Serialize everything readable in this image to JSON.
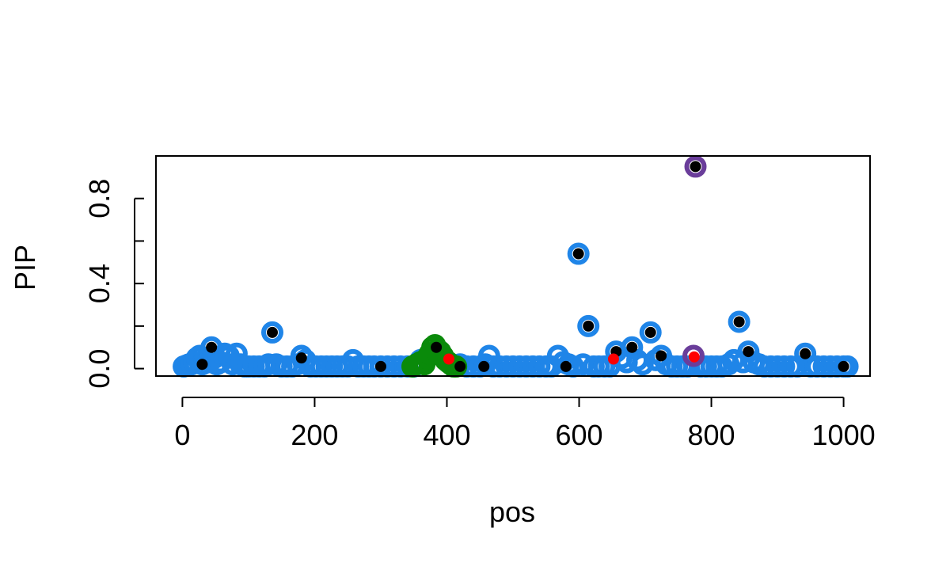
{
  "chart_data": {
    "type": "scatter",
    "title": "",
    "xlabel": "pos",
    "ylabel": "PIP",
    "xlim": [
      -40,
      1040
    ],
    "ylim": [
      -0.035,
      1.0
    ],
    "x_ticks": [
      0,
      200,
      400,
      600,
      800,
      1000
    ],
    "x_tick_labels": [
      "0",
      "200",
      "400",
      "600",
      "800",
      "1000"
    ],
    "y_ticks": [
      0.0,
      0.2,
      0.4,
      0.6,
      0.8
    ],
    "y_tick_labels": [
      "0.0",
      "",
      "0.4",
      "",
      "0.8"
    ],
    "grid": false,
    "legend": "none",
    "colors": {
      "credible_set_1": "#1f85e8",
      "credible_set_2": "#6a3d9a",
      "credible_set_3": "#0a8a0a",
      "point_fill": "#000000",
      "causal": "#ff0000"
    },
    "series": [
      {
        "role": "ring",
        "color": "#1f85e8",
        "points": [
          [
            2,
            0.01
          ],
          [
            6,
            0.015
          ],
          [
            10,
            0.02
          ],
          [
            14,
            0.02
          ],
          [
            18,
            0.03
          ],
          [
            22,
            0.05
          ],
          [
            26,
            0.06
          ],
          [
            30,
            0.02
          ],
          [
            34,
            0.04
          ],
          [
            38,
            0.03
          ],
          [
            44,
            0.1
          ],
          [
            48,
            0.05
          ],
          [
            52,
            0.02
          ],
          [
            58,
            0.03
          ],
          [
            64,
            0.07
          ],
          [
            70,
            0.06
          ],
          [
            76,
            0.02
          ],
          [
            82,
            0.07
          ],
          [
            88,
            0.02
          ],
          [
            94,
            0.01
          ],
          [
            100,
            0.01
          ],
          [
            108,
            0.01
          ],
          [
            116,
            0.01
          ],
          [
            124,
            0.01
          ],
          [
            130,
            0.02
          ],
          [
            136,
            0.17
          ],
          [
            142,
            0.02
          ],
          [
            150,
            0.01
          ],
          [
            158,
            0.01
          ],
          [
            166,
            0.01
          ],
          [
            174,
            0.02
          ],
          [
            180,
            0.06
          ],
          [
            186,
            0.04
          ],
          [
            194,
            0.01
          ],
          [
            202,
            0.01
          ],
          [
            210,
            0.01
          ],
          [
            218,
            0.01
          ],
          [
            226,
            0.01
          ],
          [
            234,
            0.01
          ],
          [
            242,
            0.01
          ],
          [
            250,
            0.01
          ],
          [
            258,
            0.04
          ],
          [
            266,
            0.01
          ],
          [
            274,
            0.01
          ],
          [
            282,
            0.01
          ],
          [
            290,
            0.01
          ],
          [
            300,
            0.01
          ],
          [
            310,
            0.01
          ],
          [
            320,
            0.01
          ],
          [
            330,
            0.01
          ],
          [
            340,
            0.01
          ],
          [
            350,
            0.01
          ],
          [
            360,
            0.04
          ],
          [
            420,
            0.02
          ],
          [
            430,
            0.01
          ],
          [
            440,
            0.01
          ],
          [
            450,
            0.01
          ],
          [
            458,
            0.02
          ],
          [
            464,
            0.06
          ],
          [
            470,
            0.01
          ],
          [
            480,
            0.01
          ],
          [
            490,
            0.01
          ],
          [
            500,
            0.01
          ],
          [
            510,
            0.01
          ],
          [
            520,
            0.01
          ],
          [
            530,
            0.01
          ],
          [
            540,
            0.01
          ],
          [
            550,
            0.01
          ],
          [
            558,
            0.01
          ],
          [
            568,
            0.06
          ],
          [
            576,
            0.03
          ],
          [
            584,
            0.02
          ],
          [
            591,
            0.01
          ],
          [
            599,
            0.54
          ],
          [
            606,
            0.02
          ],
          [
            614,
            0.2
          ],
          [
            622,
            0.01
          ],
          [
            630,
            0.01
          ],
          [
            638,
            0.01
          ],
          [
            646,
            0.01
          ],
          [
            656,
            0.08
          ],
          [
            664,
            0.05
          ],
          [
            672,
            0.03
          ],
          [
            680,
            0.1
          ],
          [
            688,
            0.04
          ],
          [
            696,
            0.02
          ],
          [
            708,
            0.17
          ],
          [
            716,
            0.04
          ],
          [
            724,
            0.06
          ],
          [
            732,
            0.02
          ],
          [
            740,
            0.01
          ],
          [
            748,
            0.01
          ],
          [
            756,
            0.01
          ],
          [
            764,
            0.01
          ],
          [
            784,
            0.01
          ],
          [
            792,
            0.01
          ],
          [
            800,
            0.01
          ],
          [
            808,
            0.01
          ],
          [
            816,
            0.01
          ],
          [
            826,
            0.02
          ],
          [
            834,
            0.04
          ],
          [
            842,
            0.22
          ],
          [
            848,
            0.03
          ],
          [
            856,
            0.08
          ],
          [
            864,
            0.03
          ],
          [
            872,
            0.02
          ],
          [
            880,
            0.01
          ],
          [
            890,
            0.01
          ],
          [
            900,
            0.01
          ],
          [
            910,
            0.01
          ],
          [
            920,
            0.01
          ],
          [
            930,
            0.01
          ],
          [
            942,
            0.07
          ],
          [
            950,
            0.01
          ],
          [
            960,
            0.01
          ],
          [
            970,
            0.01
          ],
          [
            980,
            0.01
          ],
          [
            990,
            0.01
          ],
          [
            1000,
            0.01
          ],
          [
            1006,
            0.01
          ]
        ]
      },
      {
        "role": "ring",
        "color": "#0a8a0a",
        "points": [
          [
            348,
            0.01
          ],
          [
            354,
            0.02
          ],
          [
            360,
            0.03
          ],
          [
            366,
            0.02
          ],
          [
            370,
            0.05
          ],
          [
            374,
            0.07
          ],
          [
            378,
            0.1
          ],
          [
            382,
            0.11
          ],
          [
            386,
            0.09
          ],
          [
            390,
            0.08
          ],
          [
            394,
            0.06
          ],
          [
            398,
            0.04
          ],
          [
            402,
            0.03
          ],
          [
            406,
            0.02
          ],
          [
            410,
            0.01
          ],
          [
            414,
            0.01
          ]
        ]
      },
      {
        "role": "ring",
        "color": "#6a3d9a",
        "points": [
          [
            776,
            0.95
          ],
          [
            773,
            0.06
          ]
        ]
      },
      {
        "role": "dot",
        "color": "#000000",
        "points": [
          [
            44,
            0.1
          ],
          [
            136,
            0.17
          ],
          [
            180,
            0.05
          ],
          [
            300,
            0.01
          ],
          [
            384,
            0.1
          ],
          [
            599,
            0.54
          ],
          [
            614,
            0.2
          ],
          [
            656,
            0.08
          ],
          [
            680,
            0.1
          ],
          [
            708,
            0.17
          ],
          [
            724,
            0.06
          ],
          [
            776,
            0.95
          ],
          [
            842,
            0.22
          ],
          [
            856,
            0.08
          ],
          [
            942,
            0.07
          ],
          [
            1000,
            0.01
          ],
          [
            30,
            0.02
          ],
          [
            420,
            0.01
          ],
          [
            456,
            0.01
          ],
          [
            580,
            0.01
          ]
        ]
      },
      {
        "role": "dot",
        "color": "#ff0000",
        "points": [
          [
            403,
            0.045
          ],
          [
            652,
            0.045
          ],
          [
            774,
            0.055
          ]
        ]
      }
    ]
  }
}
